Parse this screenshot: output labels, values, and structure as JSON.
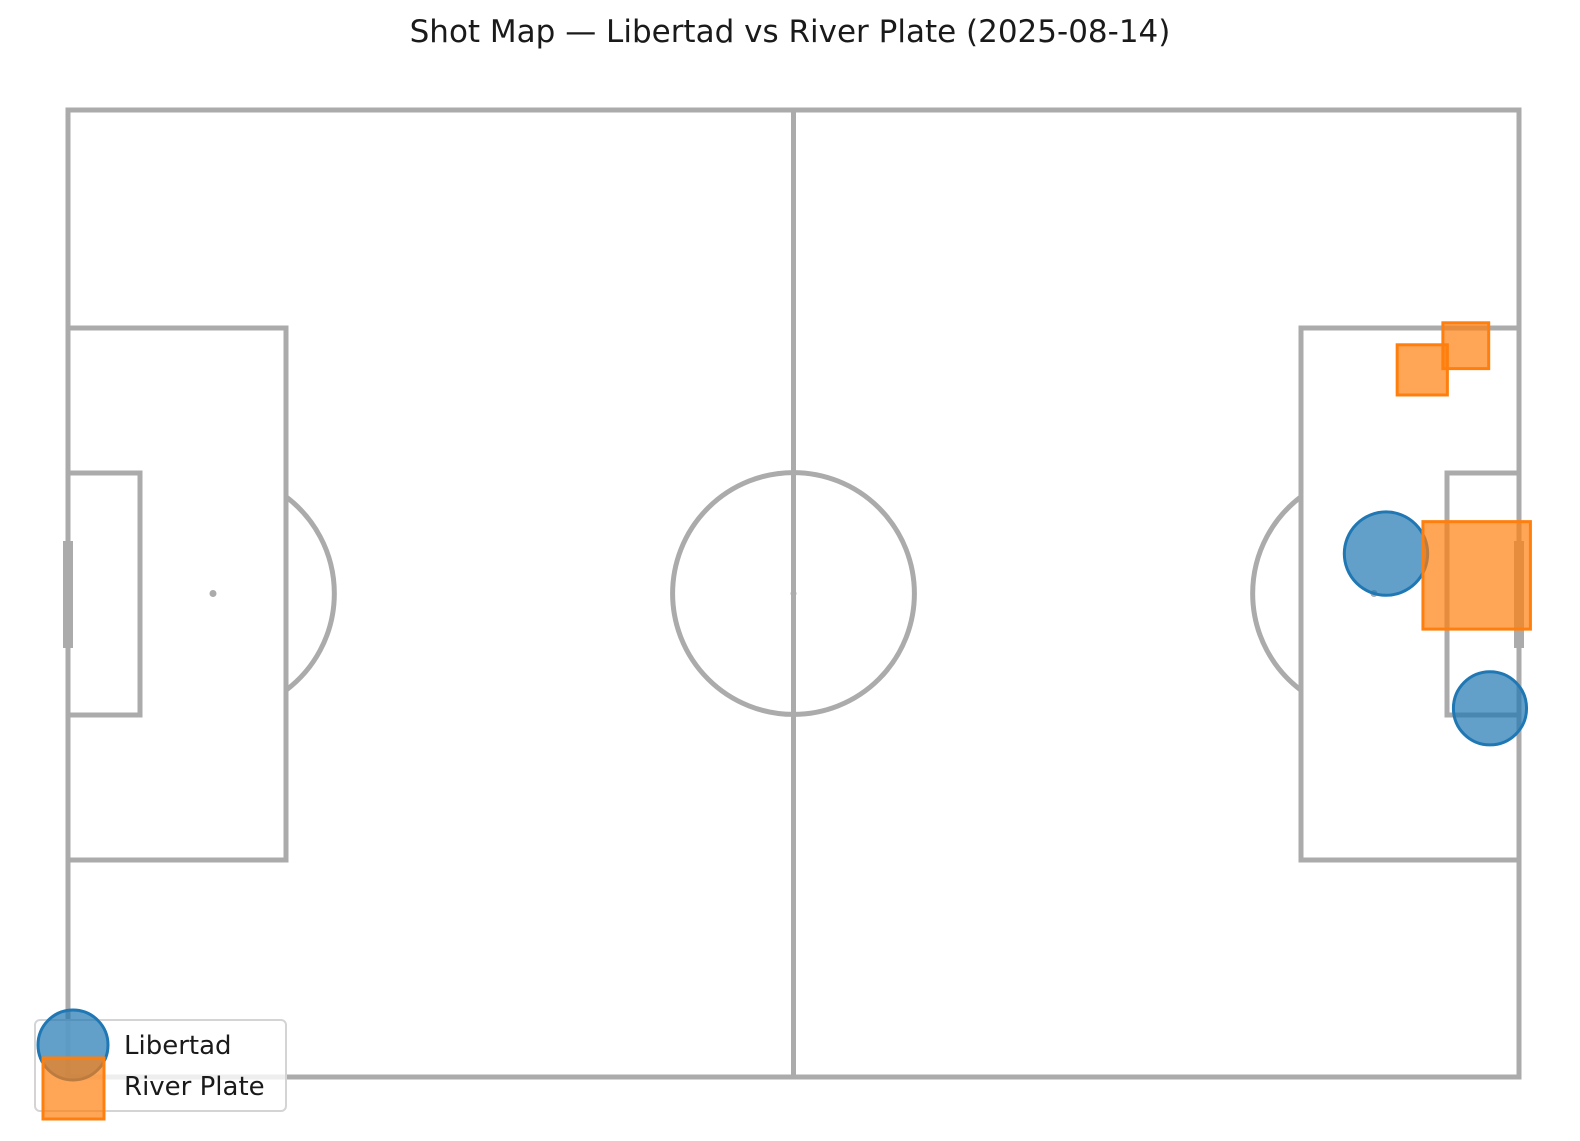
{
  "chart_data": {
    "type": "scatter",
    "title": "Shot Map — Libertad vs River Plate (2025-08-14)",
    "xlabel": "",
    "ylabel": "",
    "xlim": [
      0,
      120
    ],
    "ylim": [
      0,
      80
    ],
    "grid": false,
    "legend_position": "bottom-left",
    "series": [
      {
        "name": "Libertad",
        "marker": "circle",
        "color": "#1f77b4",
        "points": [
          {
            "x": 109,
            "y": 36.7,
            "xg": 0.26
          },
          {
            "x": 117.6,
            "y": 49.5,
            "xg": 0.2
          }
        ]
      },
      {
        "name": "River Plate",
        "marker": "square",
        "color": "#ff7f0e",
        "points": [
          {
            "x": 116.5,
            "y": 38.5,
            "xg": 0.55
          },
          {
            "x": 112,
            "y": 21.5,
            "xg": 0.12
          },
          {
            "x": 115.6,
            "y": 19.5,
            "xg": 0.1
          }
        ]
      }
    ]
  }
}
